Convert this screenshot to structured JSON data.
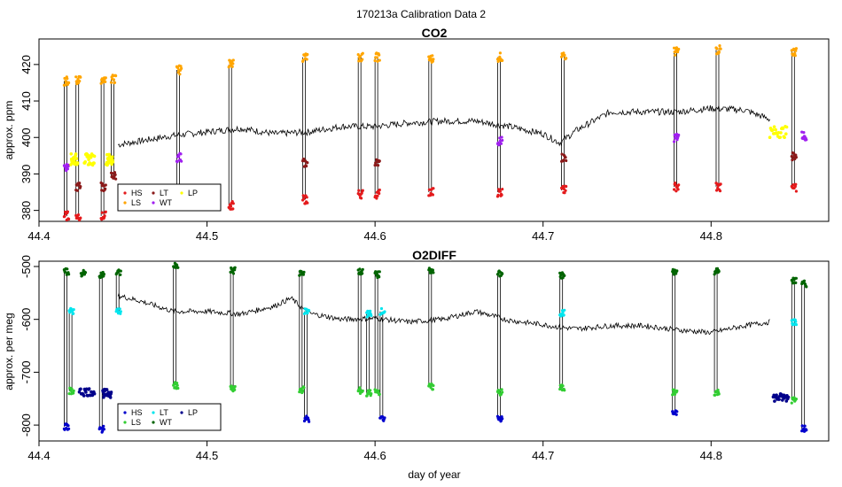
{
  "title": "170213a   Calibration Data 2",
  "xlabel": "day of year",
  "colors": {
    "HS": "#e41a1c",
    "LS": "#ffa500",
    "LT": "#8b1a1a",
    "WT": "#a020f0",
    "LP": "#ffff00",
    "trace": "#000000",
    "o2_HS": "#0000cd",
    "o2_LS": "#32cd32",
    "o2_LT": "#00e5ee",
    "o2_WT": "#006400",
    "o2_LP": "#00008b"
  },
  "chart_data": [
    {
      "type": "line",
      "title": "CO2",
      "xlabel": "",
      "ylabel": "approx. ppm",
      "xlim": [
        44.4,
        44.87
      ],
      "ylim": [
        377,
        427
      ],
      "xticks": [
        "44.4",
        "44.5",
        "44.6",
        "44.7",
        "44.8"
      ],
      "yticks": [
        "380",
        "390",
        "400",
        "410",
        "420"
      ],
      "legend": {
        "position": "bottom-left",
        "entries": [
          "HS",
          "LS",
          "LT",
          "WT",
          "LP"
        ]
      },
      "baseline": {
        "x": [
          44.447,
          44.46,
          44.48,
          44.5,
          44.52,
          44.54,
          44.56,
          44.58,
          44.6,
          44.62,
          44.64,
          44.66,
          44.68,
          44.7,
          44.71,
          44.72,
          44.74,
          44.76,
          44.78,
          44.8,
          44.82,
          44.835
        ],
        "y": [
          398,
          399,
          400.5,
          401.5,
          402.5,
          401,
          401.5,
          403,
          403,
          404,
          404.5,
          404.5,
          403,
          401,
          398.5,
          402,
          407,
          407,
          407,
          408,
          407.5,
          405
        ]
      },
      "calibration_events": [
        {
          "x": 44.415,
          "HS": 378.5,
          "LS": 415.5,
          "WT": 392
        },
        {
          "x": 44.422,
          "HS": 378.5,
          "LS": 415.5,
          "LT": 386.5
        },
        {
          "x": 44.437,
          "HS": 378.5,
          "LS": 416,
          "LT": 386.5
        },
        {
          "x": 44.443,
          "LS": 416,
          "LT": 389.5
        },
        {
          "x": 44.482,
          "HS": 381.5,
          "LS": 418.5,
          "WT": 394.5
        },
        {
          "x": 44.513,
          "HS": 381.5,
          "LS": 420
        },
        {
          "x": 44.557,
          "HS": 383,
          "LS": 422,
          "LT": 393
        },
        {
          "x": 44.59,
          "HS": 384.5,
          "LS": 422
        },
        {
          "x": 44.6,
          "HS": 384.5,
          "LS": 422,
          "LT": 393
        },
        {
          "x": 44.632,
          "HS": 385,
          "LS": 421.5
        },
        {
          "x": 44.673,
          "HS": 385,
          "LS": 422,
          "WT": 399
        },
        {
          "x": 44.711,
          "HS": 385.5,
          "LS": 422.5,
          "LT": 394.5
        },
        {
          "x": 44.778,
          "HS": 386.5,
          "LS": 423.5,
          "WT": 400
        },
        {
          "x": 44.803,
          "HS": 386.5,
          "LS": 424
        },
        {
          "x": 44.848,
          "HS": 386,
          "LS": 423.5,
          "LT": 395
        },
        {
          "x": 44.854,
          "WT": 400.5
        }
      ],
      "LP_segments": [
        {
          "x": [
            44.419,
            44.423
          ],
          "y": 394
        },
        {
          "x": [
            44.427,
            44.433
          ],
          "y": 394
        },
        {
          "x": [
            44.44,
            44.444
          ],
          "y": 394
        },
        {
          "x": [
            44.835,
            44.845
          ],
          "y": 401.5
        }
      ]
    },
    {
      "type": "line",
      "title": "O2DIFF",
      "xlabel": "day of year",
      "ylabel": "approx. per meg",
      "xlim": [
        44.4,
        44.87
      ],
      "ylim": [
        -830,
        -490
      ],
      "xticks": [
        "44.4",
        "44.5",
        "44.6",
        "44.7",
        "44.8"
      ],
      "yticks": [
        "-800",
        "-700",
        "-600",
        "-500"
      ],
      "legend": {
        "position": "bottom-left",
        "entries": [
          "HS",
          "LS",
          "LT",
          "WT",
          "LP"
        ]
      },
      "baseline": {
        "x": [
          44.447,
          44.46,
          44.48,
          44.5,
          44.52,
          44.54,
          44.55,
          44.56,
          44.58,
          44.6,
          44.62,
          44.64,
          44.66,
          44.68,
          44.7,
          44.71,
          44.72,
          44.74,
          44.76,
          44.78,
          44.8,
          44.82,
          44.835
        ],
        "y": [
          -555,
          -565,
          -585,
          -585,
          -590,
          -575,
          -560,
          -588,
          -600,
          -598,
          -605,
          -600,
          -585,
          -602,
          -610,
          -615,
          -618,
          -612,
          -612,
          -620,
          -625,
          -612,
          -605
        ]
      },
      "calibration_events": [
        {
          "x": 44.415,
          "HS": -803,
          "WT": -510
        },
        {
          "x": 44.418,
          "LS": -735,
          "LT": -585
        },
        {
          "x": 44.425,
          "WT": -513
        },
        {
          "x": 44.436,
          "WT": -515,
          "HS": -808
        },
        {
          "x": 44.446,
          "LT": -585,
          "WT": -512
        },
        {
          "x": 44.48,
          "LS": -725,
          "WT": -500
        },
        {
          "x": 44.514,
          "LS": -732,
          "WT": -508
        },
        {
          "x": 44.555,
          "LS": -733,
          "WT": -512
        },
        {
          "x": 44.558,
          "LT": -585,
          "HS": -788
        },
        {
          "x": 44.59,
          "LS": -735,
          "WT": -510
        },
        {
          "x": 44.595,
          "LS": -740,
          "LT": -590
        },
        {
          "x": 44.6,
          "LS": -737,
          "WT": -515
        },
        {
          "x": 44.603,
          "HS": -787,
          "LT": -585
        },
        {
          "x": 44.632,
          "LS": -728,
          "WT": -507
        },
        {
          "x": 44.673,
          "LS": -738,
          "WT": -514,
          "HS": -789
        },
        {
          "x": 44.71,
          "LS": -730,
          "WT": -517,
          "LT": -588
        },
        {
          "x": 44.777,
          "LS": -738,
          "WT": -510,
          "HS": -778
        },
        {
          "x": 44.802,
          "LS": -738,
          "WT": -509
        },
        {
          "x": 44.848,
          "LS": -753,
          "WT": -527,
          "LT": -605
        },
        {
          "x": 44.854,
          "HS": -807,
          "WT": -533
        }
      ],
      "LP_segments": [
        {
          "x": [
            44.424,
            44.433
          ],
          "y": -737
        },
        {
          "x": [
            44.438,
            44.443
          ],
          "y": -740
        },
        {
          "x": [
            44.837,
            44.846
          ],
          "y": -748
        }
      ]
    }
  ]
}
